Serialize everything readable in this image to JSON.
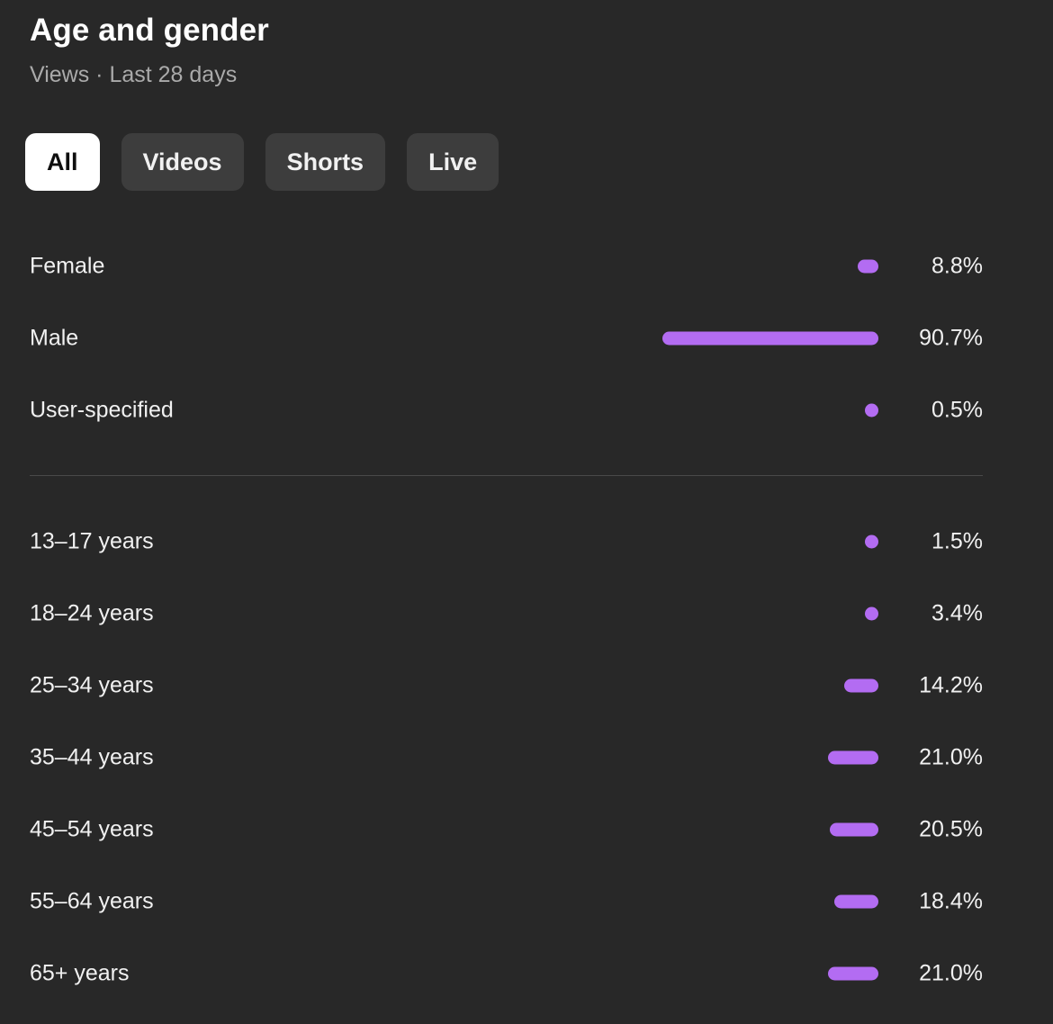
{
  "header": {
    "title": "Age and gender",
    "subtitle": "Views · Last 28 days"
  },
  "tabs": [
    {
      "label": "All",
      "active": true
    },
    {
      "label": "Videos",
      "active": false
    },
    {
      "label": "Shorts",
      "active": false
    },
    {
      "label": "Live",
      "active": false
    }
  ],
  "colors": {
    "bar": "#b36cf2",
    "background": "#282828",
    "tab_active": "#ffffff",
    "tab_inactive": "#3d3d3d"
  },
  "gender": [
    {
      "label": "Female",
      "value": "8.8%",
      "pct": 8.8
    },
    {
      "label": "Male",
      "value": "90.7%",
      "pct": 90.7
    },
    {
      "label": "User-specified",
      "value": "0.5%",
      "pct": 0.5
    }
  ],
  "age": [
    {
      "label": "13–17 years",
      "value": "1.5%",
      "pct": 1.5
    },
    {
      "label": "18–24 years",
      "value": "3.4%",
      "pct": 3.4
    },
    {
      "label": "25–34 years",
      "value": "14.2%",
      "pct": 14.2
    },
    {
      "label": "35–44 years",
      "value": "21.0%",
      "pct": 21.0
    },
    {
      "label": "45–54 years",
      "value": "20.5%",
      "pct": 20.5
    },
    {
      "label": "55–64 years",
      "value": "18.4%",
      "pct": 18.4
    },
    {
      "label": "65+ years",
      "value": "21.0%",
      "pct": 21.0
    }
  ]
}
